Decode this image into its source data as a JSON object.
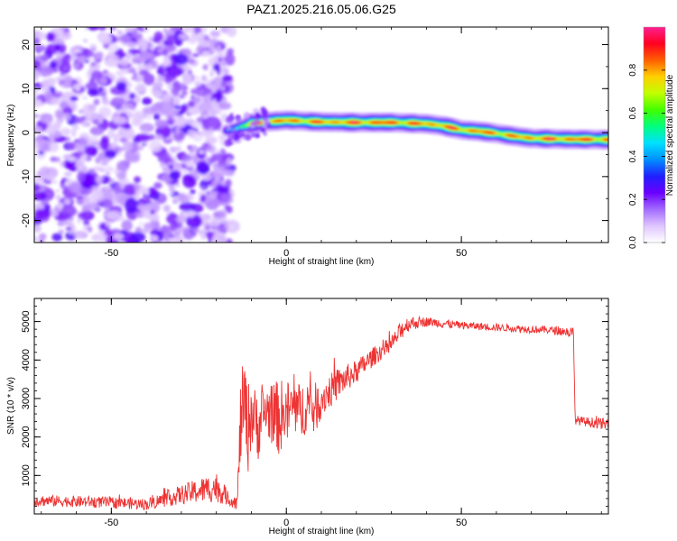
{
  "chart_data": [
    {
      "type": "heatmap",
      "title": "PAZ1.2025.216.05.06.G25",
      "xlabel": "Height of straight line (km)",
      "ylabel": "Frequency (Hz)",
      "xlim": [
        -72,
        92
      ],
      "ylim": [
        -25,
        24
      ],
      "xticks": [
        -50,
        0,
        50
      ],
      "yticks": [
        -20,
        -10,
        0,
        10,
        20
      ],
      "colorbar": {
        "label": "Normalized spectral amplitude",
        "range": [
          0,
          1
        ],
        "ticks": [
          "0.0",
          "0.2",
          "0.4",
          "0.6",
          "0.8"
        ],
        "colors": [
          "#ffffff",
          "#dfc6ff",
          "#a36bff",
          "#6a00ff",
          "#2020ff",
          "#0090ff",
          "#00e0ff",
          "#00ff80",
          "#40ff00",
          "#c0ff00",
          "#ffd000",
          "#ff6000",
          "#ff0020",
          "#ff2090"
        ]
      },
      "noise_region_x": [
        -72,
        -17
      ],
      "ridge": {
        "x": [
          -17,
          -14,
          -10,
          -5,
          0,
          5,
          10,
          20,
          30,
          40,
          45,
          50,
          55,
          60,
          65,
          70,
          80,
          92
        ],
        "frequency": [
          0.5,
          1.0,
          2.0,
          2.5,
          2.8,
          2.6,
          2.4,
          2.3,
          2.3,
          2.0,
          1.5,
          0.6,
          0.3,
          -0.2,
          -0.8,
          -1.3,
          -1.5,
          -1.6
        ],
        "peak_amplitude": [
          0.45,
          0.55,
          0.88,
          0.9,
          0.85,
          0.9,
          0.88,
          0.92,
          0.93,
          0.88,
          0.9,
          0.9,
          0.88,
          0.9,
          0.85,
          0.9,
          0.92,
          0.9
        ]
      }
    },
    {
      "type": "line",
      "xlabel": "Height of straight line (km)",
      "ylabel": "SNR (10 * v/v)",
      "xlim": [
        -72,
        92
      ],
      "ylim": [
        0,
        5600
      ],
      "xticks": [
        -50,
        0,
        50
      ],
      "yticks": [
        1000,
        2000,
        3000,
        4000,
        5000
      ],
      "color": "#ee3333",
      "envelope": {
        "x": [
          -72,
          -50,
          -40,
          -30,
          -20,
          -16,
          -14,
          -13,
          -12,
          -11,
          -10,
          -9,
          -8,
          -6,
          -4,
          -2,
          0,
          2,
          4,
          6,
          8,
          10,
          15,
          20,
          25,
          30,
          33,
          35,
          40,
          45,
          50,
          60,
          70,
          75,
          79,
          82,
          82.5,
          85,
          90,
          92
        ],
        "mean": [
          350,
          300,
          250,
          500,
          700,
          350,
          300,
          2500,
          3000,
          2200,
          2700,
          2400,
          2300,
          2700,
          2600,
          2500,
          2600,
          2800,
          2600,
          2900,
          2700,
          3000,
          3400,
          3700,
          4100,
          4400,
          4800,
          4950,
          5000,
          4950,
          4900,
          4850,
          4800,
          4780,
          4750,
          4700,
          2450,
          2400,
          2350,
          2300
        ],
        "spread": [
          150,
          150,
          150,
          250,
          400,
          150,
          200,
          1200,
          1000,
          1200,
          1000,
          900,
          900,
          700,
          800,
          1000,
          900,
          700,
          800,
          700,
          700,
          500,
          400,
          300,
          250,
          200,
          250,
          200,
          120,
          120,
          100,
          100,
          100,
          100,
          120,
          150,
          120,
          120,
          150,
          150
        ]
      }
    }
  ]
}
